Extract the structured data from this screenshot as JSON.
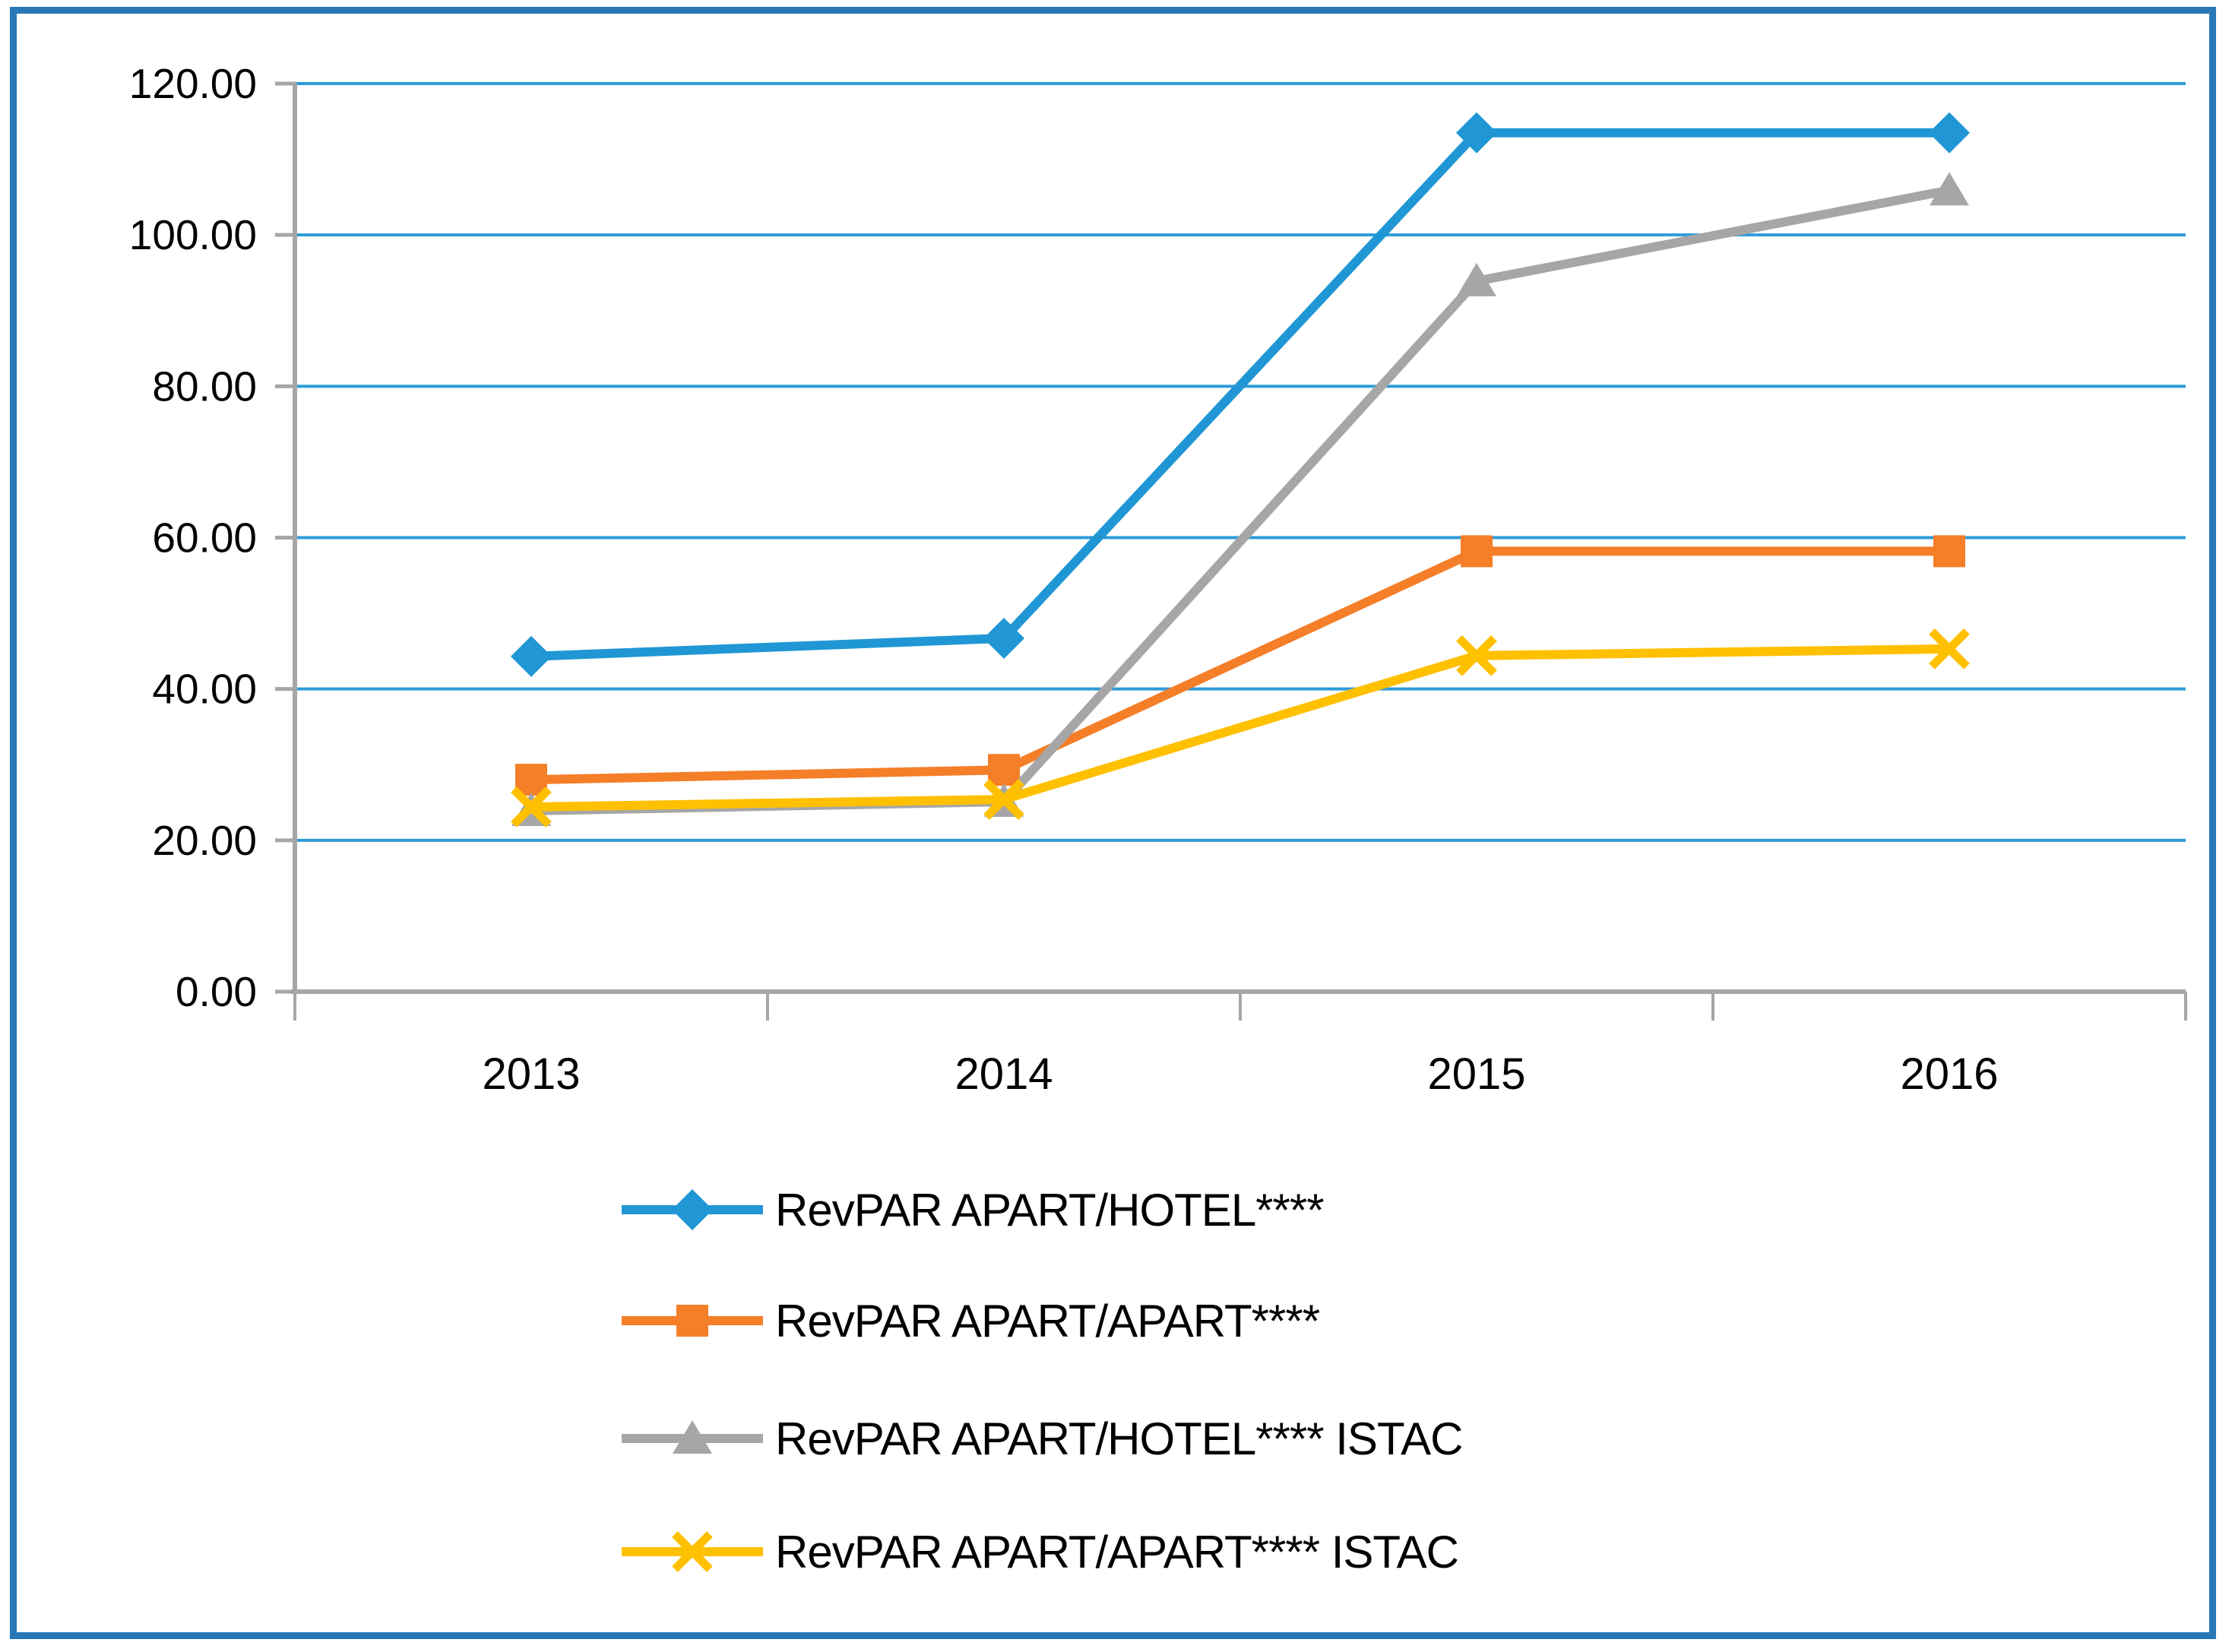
{
  "chart_data": {
    "type": "line",
    "categories": [
      "2013",
      "2014",
      "2015",
      "2016"
    ],
    "series": [
      {
        "name": "RevPAR APART/HOTEL****",
        "color": "#2097D4",
        "marker": "diamond",
        "values": [
          44.3,
          46.7,
          113.5,
          113.5
        ]
      },
      {
        "name": "RevPAR APART/APART****",
        "color": "#F57E28",
        "marker": "square",
        "values": [
          28.0,
          29.3,
          58.2,
          58.2
        ]
      },
      {
        "name": "RevPAR APART/HOTEL**** ISTAC",
        "color": "#A6A6A6",
        "marker": "triangle",
        "values": [
          23.9,
          25.1,
          93.9,
          105.9
        ]
      },
      {
        "name": "RevPAR APART/APART**** ISTAC",
        "color": "#FFC000",
        "marker": "x",
        "values": [
          24.4,
          25.4,
          44.4,
          45.3
        ]
      }
    ],
    "title": "",
    "xlabel": "",
    "ylabel": "",
    "ylim": [
      0,
      120
    ],
    "y_tick_step": 20,
    "y_tick_labels": [
      "0.00",
      "20.00",
      "40.00",
      "60.00",
      "80.00",
      "100.00",
      "120.00"
    ],
    "grid": "horizontal",
    "gridline_color": "#2E9BD9",
    "axis_color": "#A6A6A6",
    "tick_color": "#A6A6A6",
    "label_color": "#000000",
    "border_color": "#2878B8",
    "background_color": "#FFFFFF",
    "legend_position": "bottom-left"
  }
}
